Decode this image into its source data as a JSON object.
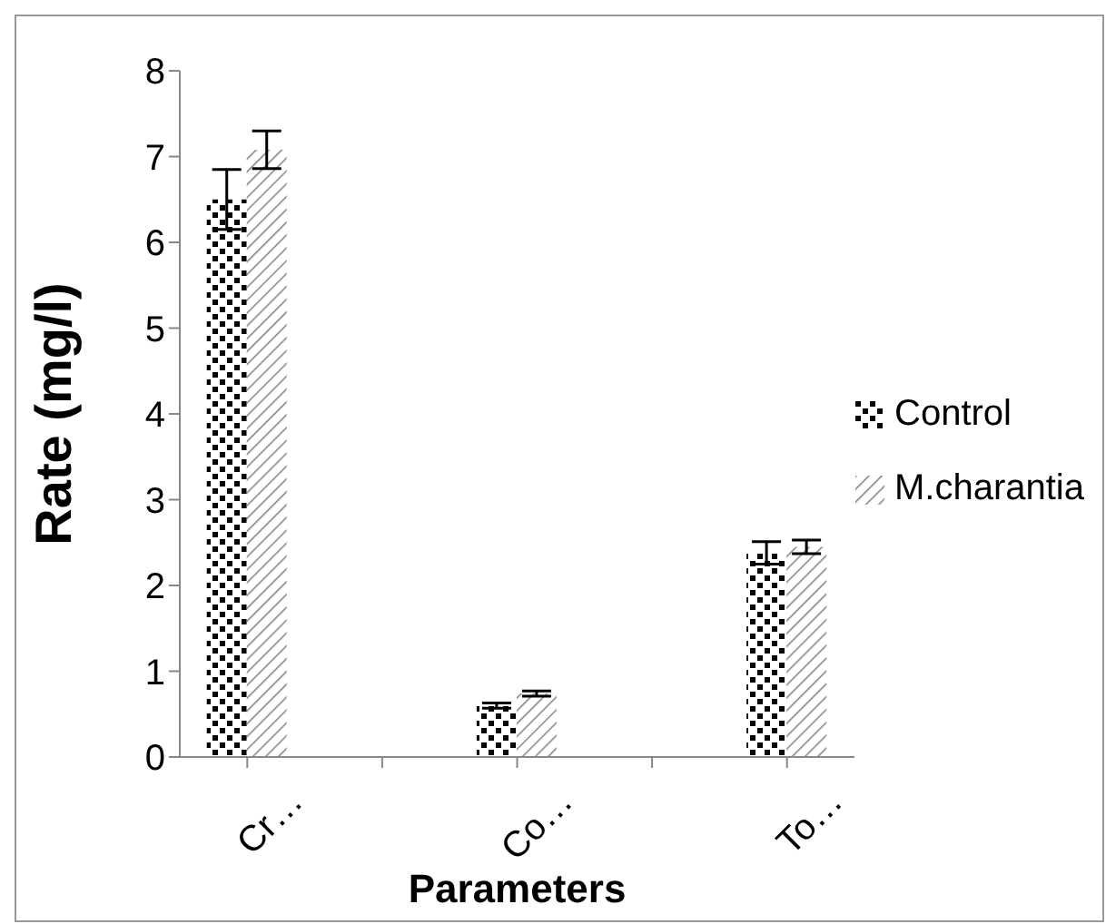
{
  "chart_data": {
    "type": "bar",
    "xlabel": "Parameters",
    "ylabel": "Rate (mg/l)",
    "categories": [
      "Cr…",
      null,
      "Co…",
      null,
      "To…"
    ],
    "series": [
      {
        "name": "Control",
        "color": "#000000",
        "values": [
          6.5,
          0,
          0.6,
          0,
          2.38
        ],
        "errors": [
          0.35,
          null,
          0.03,
          null,
          0.13
        ]
      },
      {
        "name": "M.charantia",
        "color": "#808080",
        "values": [
          7.08,
          0,
          0.74,
          0,
          2.45
        ],
        "errors": [
          0.22,
          null,
          0.03,
          null,
          0.08
        ]
      }
    ],
    "ylim": [
      0,
      8
    ],
    "yticks": [
      0,
      1,
      2,
      3,
      4,
      5,
      6,
      7,
      8
    ],
    "grid": false,
    "legend": "right"
  }
}
